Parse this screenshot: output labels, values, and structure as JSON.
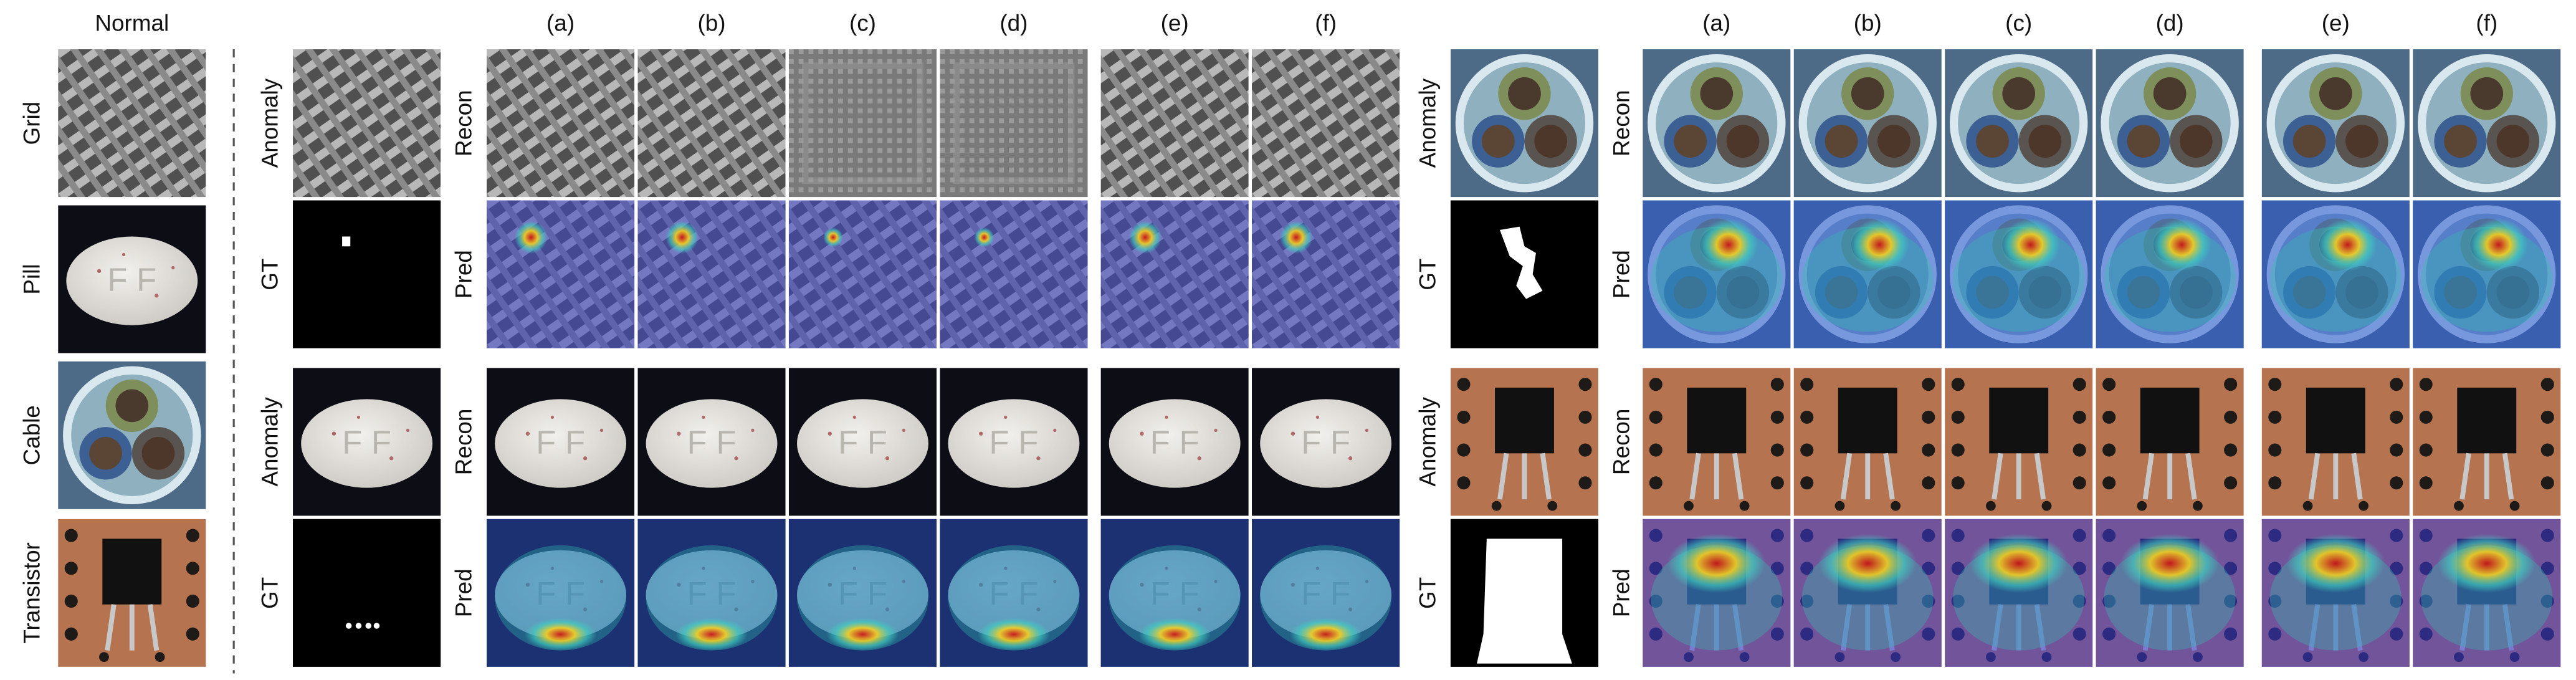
{
  "normal_column": {
    "title": "Normal",
    "labels": [
      "Grid",
      "Pill",
      "Cable",
      "Transistor"
    ]
  },
  "panels": [
    {
      "column_headers": [
        "(a)",
        "(b)",
        "(c)",
        "(d)",
        "(e)",
        "(f)"
      ],
      "rows": [
        {
          "input_labels": [
            "Anomaly",
            "GT"
          ],
          "output_labels": [
            "Recon",
            "Pred"
          ]
        },
        {
          "input_labels": [
            "Anomaly",
            "GT"
          ],
          "output_labels": [
            "Recon",
            "Pred"
          ]
        }
      ]
    },
    {
      "column_headers": [
        "(a)",
        "(b)",
        "(c)",
        "(d)",
        "(e)",
        "(f)"
      ],
      "rows": [
        {
          "input_labels": [
            "Anomaly",
            "GT"
          ],
          "output_labels": [
            "Recon",
            "Pred"
          ]
        },
        {
          "input_labels": [
            "Anomaly",
            "GT"
          ],
          "output_labels": [
            "Recon",
            "Pred"
          ]
        }
      ]
    }
  ]
}
